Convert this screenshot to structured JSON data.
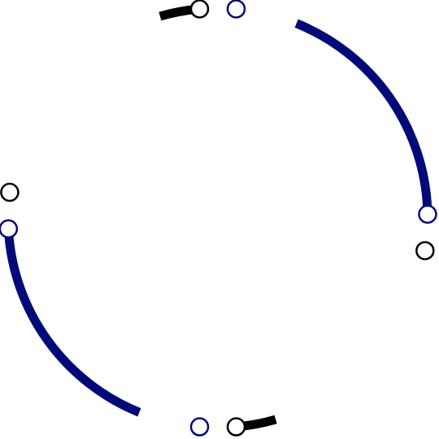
{
  "colors": {
    "navy": "#000a78",
    "black": "#000000",
    "background": "#ffffff",
    "node_fill": "#ffffff"
  },
  "arcs": [
    {
      "name": "arc-top-black",
      "color": "black",
      "start_deg": 254,
      "end_deg": 265
    },
    {
      "name": "arc-top-right-navy",
      "color": "navy",
      "start_deg": 292,
      "end_deg": 358
    },
    {
      "name": "arc-bottom-left-navy",
      "color": "navy",
      "start_deg": 112,
      "end_deg": 176
    },
    {
      "name": "arc-bottom-black",
      "color": "black",
      "start_deg": 74,
      "end_deg": 85
    }
  ],
  "nodes": [
    {
      "name": "node-top-black",
      "color": "black",
      "angle_deg": 265
    },
    {
      "name": "node-top-navy",
      "color": "navy",
      "angle_deg": 275
    },
    {
      "name": "node-right-navy",
      "color": "navy",
      "angle_deg": 359
    },
    {
      "name": "node-right-black",
      "color": "black",
      "angle_deg": 9
    },
    {
      "name": "node-bottom-black",
      "color": "black",
      "angle_deg": 85
    },
    {
      "name": "node-bottom-navy",
      "color": "navy",
      "angle_deg": 95
    },
    {
      "name": "node-left-navy",
      "color": "navy",
      "angle_deg": 177
    },
    {
      "name": "node-left-black",
      "color": "black",
      "angle_deg": 187
    }
  ]
}
